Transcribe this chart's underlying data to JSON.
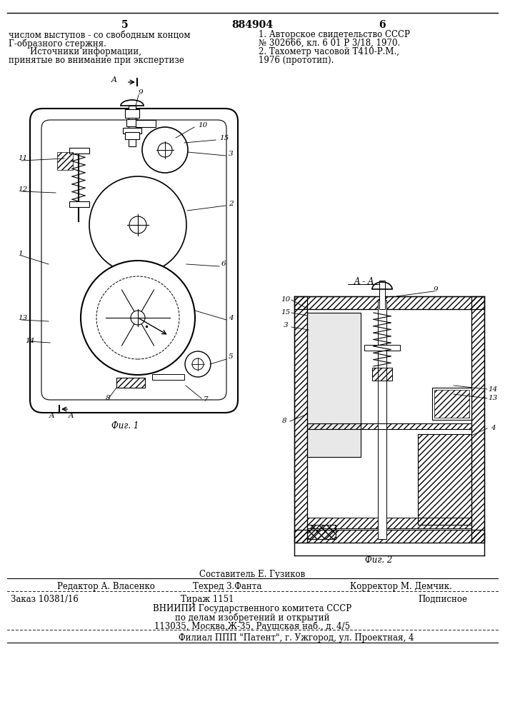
{
  "page_numbers": [
    "5",
    "6"
  ],
  "patent_number": "884904",
  "left_text_lines": [
    "числом выступов - со свободным концом",
    "Г-образного стержня.",
    "Источники информации,",
    "принятые во внимание при экспертизе"
  ],
  "right_text_lines": [
    "1. Авторское свидетельство СССР",
    "№ 302666, кл. 6 01 Р 3/18, 1970.",
    "2. Тахометр часовой Т410-Р.М.,",
    "1976 (прототип)."
  ],
  "fig1_label": "Фиг. 1",
  "fig2_label": "Фиг. 2",
  "section_label": "A - A",
  "editor_line": "Редактор А. Власенко",
  "techred_line": "Техред З.Фанта",
  "corrector_line": "Корректор М. Демчик.",
  "author_line": "Составитель Е. Гузиков",
  "order_line": "Заказ 10381/16",
  "tirazh_line": "Тираж 1151",
  "podpisnoe_line": "Подписное",
  "vnipi_line1": "ВНИИПИ Государственного комитета СССР",
  "vnipi_line2": "по делам изобретений и открытий",
  "vnipi_line3": "113035, Москва,Ж-35, Раушская наб., д. 4/5",
  "filial_line": "Филиал ППП \"Патент\", г. Ужгород, ул. Проектная, 4",
  "bg_color": "#ffffff",
  "text_color": "#000000"
}
